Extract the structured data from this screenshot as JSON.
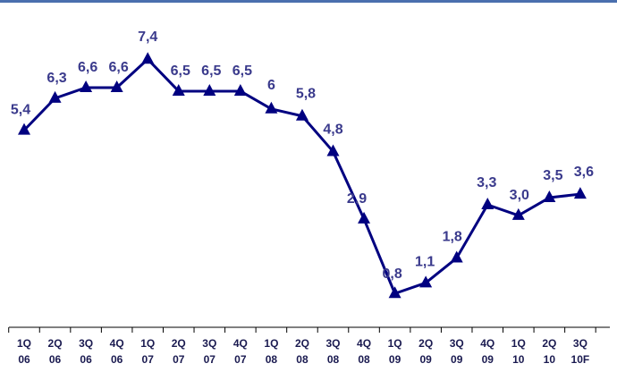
{
  "chart_data": {
    "type": "line",
    "categories": [
      [
        "1Q",
        "06"
      ],
      [
        "2Q",
        "06"
      ],
      [
        "3Q",
        "06"
      ],
      [
        "4Q",
        "06"
      ],
      [
        "1Q",
        "07"
      ],
      [
        "2Q",
        "07"
      ],
      [
        "3Q",
        "07"
      ],
      [
        "4Q",
        "07"
      ],
      [
        "1Q",
        "08"
      ],
      [
        "2Q",
        "08"
      ],
      [
        "3Q",
        "08"
      ],
      [
        "4Q",
        "08"
      ],
      [
        "1Q",
        "09"
      ],
      [
        "2Q",
        "09"
      ],
      [
        "3Q",
        "09"
      ],
      [
        "4Q",
        "09"
      ],
      [
        "1Q",
        "10"
      ],
      [
        "2Q",
        "10"
      ],
      [
        "3Q",
        "10F"
      ]
    ],
    "values": [
      5.4,
      6.3,
      6.6,
      6.6,
      7.4,
      6.5,
      6.5,
      6.5,
      6.0,
      5.8,
      4.8,
      2.9,
      0.8,
      1.1,
      1.8,
      3.3,
      3.0,
      3.5,
      3.6
    ],
    "data_labels": [
      "5,4",
      "6,3",
      "6,6",
      "6,6",
      "7,4",
      "6,5",
      "6,5",
      "6,5",
      "6",
      "5,8",
      "4,8",
      "2,9",
      "0,8",
      "1,1",
      "1,8",
      "3,3",
      "3,0",
      "3,5",
      "3,6"
    ],
    "marker": "triangle",
    "grid": false,
    "legend": "none"
  },
  "colors": {
    "line": "#000080",
    "label": "#3a3a8c",
    "axis": "#000000",
    "top_rule": "#4a6fae"
  }
}
